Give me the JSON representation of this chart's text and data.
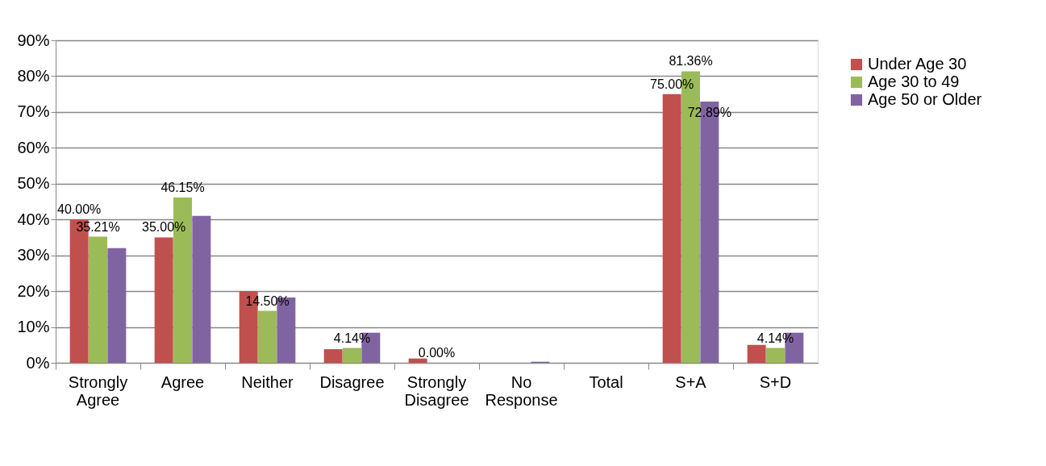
{
  "chart_data": {
    "type": "bar",
    "categories": [
      "Strongly Agree",
      "Agree",
      "Neither",
      "Disagree",
      "Strongly Disagree",
      "No Response",
      "Total",
      "S+A",
      "S+D"
    ],
    "series": [
      {
        "name": "Under Age 30",
        "color": "#c0504d",
        "values": [
          40.0,
          35.0,
          20.0,
          3.8,
          1.2,
          0,
          null,
          75.0,
          5.0
        ],
        "value_labels": [
          "40.00%",
          "35.00%",
          null,
          null,
          null,
          null,
          null,
          "75.00%",
          null
        ]
      },
      {
        "name": "Age 30 to 49",
        "color": "#9bbb59",
        "values": [
          35.21,
          46.15,
          14.5,
          4.14,
          0.0,
          0,
          null,
          81.36,
          4.14
        ],
        "value_labels": [
          "35.21%",
          "46.15%",
          "14.50%",
          "4.14%",
          "0.00%",
          null,
          null,
          "81.36%",
          "4.14%"
        ]
      },
      {
        "name": "Age 50 or Older",
        "color": "#8064a2",
        "values": [
          32.0,
          41.0,
          18.2,
          8.4,
          0,
          0.3,
          null,
          72.89,
          8.4
        ],
        "value_labels": [
          null,
          null,
          null,
          null,
          null,
          null,
          null,
          "72.89%",
          null
        ]
      }
    ],
    "ylim": [
      0,
      90
    ],
    "yticks": [
      {
        "value": 0,
        "label": "0%"
      },
      {
        "value": 10,
        "label": "10%"
      },
      {
        "value": 20,
        "label": "20%"
      },
      {
        "value": 30,
        "label": "30%"
      },
      {
        "value": 40,
        "label": "40%"
      },
      {
        "value": 50,
        "label": "50%"
      },
      {
        "value": 60,
        "label": "60%"
      },
      {
        "value": 70,
        "label": "70%"
      },
      {
        "value": 80,
        "label": "80%"
      },
      {
        "value": 90,
        "label": "90%"
      }
    ],
    "grid": "y",
    "legend": "right"
  }
}
